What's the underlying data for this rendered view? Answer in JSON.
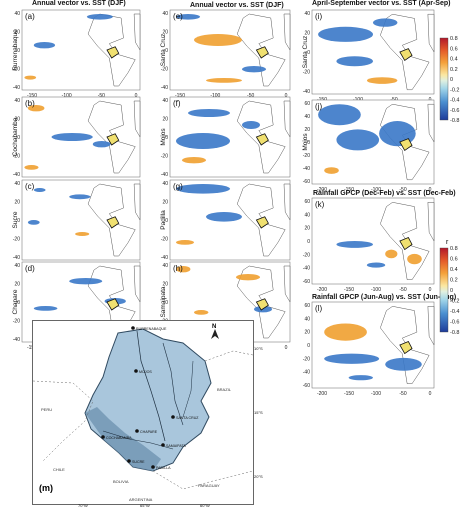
{
  "column_titles": {
    "col1": "Annual vector vs. SST (DJF)",
    "col2": "Annual vector vs. SST (DJF)",
    "col3a": "April-September vector vs. SST (Apr-Sep)",
    "col3b": "Rainfall GPCP (Dec-Feb) vs. SST (Dec-Feb)",
    "col3c": "Rainfall GPCP (Jun-Aug) vs. SST (Jun-Aug)"
  },
  "colors": {
    "land": "#ffffff",
    "ocean": "#ffffff",
    "coast": "#555555",
    "positive": "#f0a030",
    "negative": "#3a78c8",
    "basin": "#f0e070"
  },
  "colorbar_top": {
    "label": "",
    "ticks": [
      "0.8",
      "0.6",
      "0.4",
      "0.2",
      "0",
      "-0.2",
      "-0.4",
      "-0.6",
      "-0.8"
    ]
  },
  "colorbar_bottom": {
    "label": "r",
    "ticks": [
      "0.8",
      "0.6",
      "0.4",
      "0.2",
      "0",
      "-0.2",
      "-0.4",
      "-0.6",
      "-0.8"
    ]
  },
  "chart_data": [
    {
      "type": "heatmap",
      "panel": "(a)",
      "station": "Rurrenabaque",
      "title": "Annual vector vs. SST (DJF)",
      "xticks": [
        "-150",
        "-100",
        "-50",
        "0"
      ],
      "yticks": [
        "40",
        "20",
        "0",
        "-20",
        "-40"
      ]
    },
    {
      "type": "heatmap",
      "panel": "(b)",
      "station": "Cochabamba",
      "xticks": [
        "-150",
        "-100",
        "-50",
        "0"
      ],
      "yticks": [
        "40",
        "20",
        "0",
        "-20",
        "-40"
      ]
    },
    {
      "type": "heatmap",
      "panel": "(c)",
      "station": "Sucre",
      "xticks": [
        "-150",
        "-100",
        "-50",
        "0"
      ],
      "yticks": [
        "40",
        "20",
        "0",
        "-20",
        "-40"
      ]
    },
    {
      "type": "heatmap",
      "panel": "(d)",
      "station": "Chapare",
      "xticks": [
        "-150",
        "-100",
        "-50",
        "0"
      ],
      "yticks": [
        "40",
        "20",
        "0",
        "-20",
        "-40"
      ]
    },
    {
      "type": "heatmap",
      "panel": "(e)",
      "station": "Santa Cruz",
      "title": "Annual vector vs. SST (DJF)",
      "xticks": [
        "-150",
        "-100",
        "-50",
        "0"
      ],
      "yticks": [
        "40",
        "20",
        "0",
        "-20",
        "-40"
      ]
    },
    {
      "type": "heatmap",
      "panel": "(f)",
      "station": "Mojos",
      "xticks": [
        "-150",
        "-100",
        "-50",
        "0"
      ],
      "yticks": [
        "40",
        "20",
        "0",
        "-20",
        "-40"
      ]
    },
    {
      "type": "heatmap",
      "panel": "(g)",
      "station": "Padilla",
      "xticks": [
        "-150",
        "-100",
        "-50",
        "0"
      ],
      "yticks": [
        "40",
        "20",
        "0",
        "-20",
        "-40"
      ]
    },
    {
      "type": "heatmap",
      "panel": "(h)",
      "station": "Samaipata",
      "xticks": [
        "-150",
        "-100",
        "-50",
        "0"
      ],
      "yticks": [
        "40",
        "20",
        "0",
        "-20",
        "-40"
      ]
    },
    {
      "type": "heatmap",
      "panel": "(i)",
      "station": "Santa Cruz",
      "title": "April-September vector vs. SST (Apr-Sep)",
      "xticks": [
        "-150",
        "-100",
        "-50",
        "0"
      ],
      "yticks": [
        "40",
        "20",
        "0",
        "-20",
        "-40"
      ]
    },
    {
      "type": "heatmap",
      "panel": "(j)",
      "station": "Mojos",
      "xticks": [
        "-200",
        "-150",
        "-100",
        "-50",
        "0"
      ],
      "yticks": [
        "60",
        "40",
        "20",
        "0",
        "-20",
        "-40",
        "-60"
      ]
    },
    {
      "type": "heatmap",
      "panel": "(k)",
      "title": "Rainfall GPCP (Dec-Feb) vs. SST (Dec-Feb)",
      "xticks": [
        "-200",
        "-150",
        "-100",
        "-50",
        "0"
      ],
      "yticks": [
        "60",
        "40",
        "20",
        "0",
        "-20",
        "-40",
        "-60"
      ]
    },
    {
      "type": "heatmap",
      "panel": "(l)",
      "title": "Rainfall GPCP (Jun-Aug) vs. SST (Jun-Aug)",
      "xticks": [
        "-200",
        "-150",
        "-100",
        "-50",
        "0"
      ],
      "yticks": [
        "60",
        "40",
        "20",
        "0",
        "-20",
        "-40",
        "-60"
      ]
    }
  ],
  "map_m": {
    "panel": "(m)",
    "north": "N",
    "countries": [
      "PERU",
      "BRAZIL",
      "CHILE",
      "BOLIVIA",
      "PARAGUAY",
      "ARGENTINA"
    ],
    "stations": [
      "RURRENABAQUE",
      "MOJOS",
      "SANTA CRUZ",
      "COCHABAMBA",
      "CHAPARE",
      "SAMAIPATA",
      "SUCRE",
      "PADILLA"
    ],
    "lat_ticks": [
      "10°S",
      "15°S",
      "20°S"
    ],
    "lon_ticks": [
      "70°W",
      "65°W",
      "60°W"
    ]
  }
}
